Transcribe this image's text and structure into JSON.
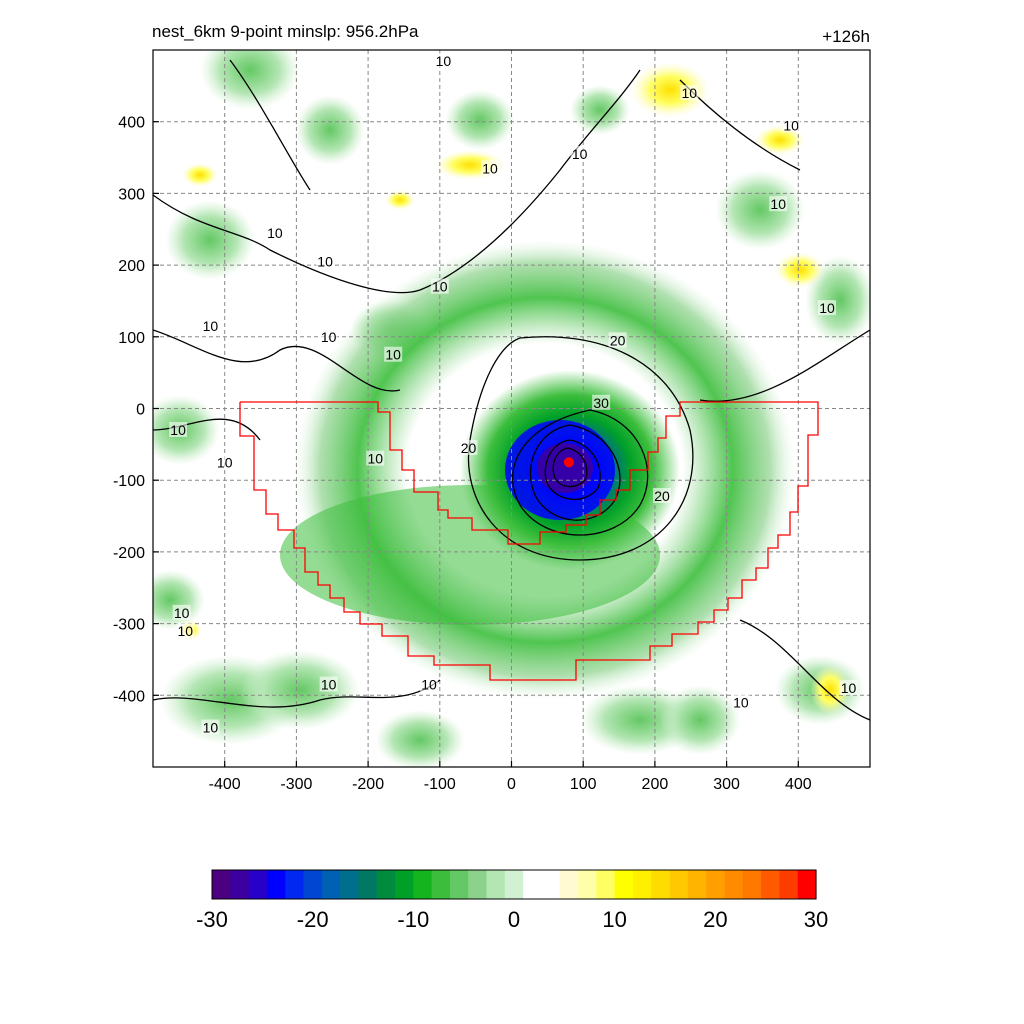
{
  "chart_data": {
    "type": "heatmap",
    "title_left": "nest_6km  9-point minslp: 956.2hPa",
    "title_right": "+126h",
    "x_ticks": [
      -400,
      -300,
      -200,
      -100,
      0,
      100,
      200,
      300,
      400
    ],
    "y_ticks": [
      400,
      300,
      200,
      100,
      0,
      -100,
      -200,
      -300,
      -400
    ],
    "xlim": [
      -500,
      500
    ],
    "ylim": [
      -500,
      500
    ],
    "grid": true,
    "colorbar": {
      "range": [
        -30,
        30
      ],
      "tick_labels": [
        "-30",
        "-20",
        "-10",
        "0",
        "10",
        "20",
        "30"
      ],
      "tick_values": [
        -30,
        -20,
        -10,
        0,
        10,
        20,
        30
      ],
      "colors": [
        "#4b0080",
        "#3c00a0",
        "#2800c8",
        "#0000ff",
        "#0028f0",
        "#0046d2",
        "#0060b4",
        "#006e8c",
        "#007864",
        "#008c3c",
        "#00a028",
        "#14b41e",
        "#3cbe3c",
        "#64c864",
        "#8cd28c",
        "#b4e6b4",
        "#d2f0d2",
        "#ffffff",
        "#ffffff",
        "#fffad2",
        "#ffffaa",
        "#ffff64",
        "#ffff00",
        "#fff000",
        "#ffdc00",
        "#ffc800",
        "#ffb400",
        "#ffa000",
        "#ff8c00",
        "#ff7800",
        "#ff5a00",
        "#ff3c00",
        "#ff0000"
      ]
    },
    "contour_labels": [
      {
        "text": "10",
        "x": -95,
        "y": 485
      },
      {
        "text": "10",
        "x": 248,
        "y": 440
      },
      {
        "text": "10",
        "x": 390,
        "y": 395
      },
      {
        "text": "10",
        "x": 95,
        "y": 355
      },
      {
        "text": "10",
        "x": -30,
        "y": 335
      },
      {
        "text": "10",
        "x": 372,
        "y": 285
      },
      {
        "text": "10",
        "x": -330,
        "y": 245
      },
      {
        "text": "10",
        "x": -260,
        "y": 205
      },
      {
        "text": "10",
        "x": -100,
        "y": 170
      },
      {
        "text": "10",
        "x": 440,
        "y": 140
      },
      {
        "text": "10",
        "x": -420,
        "y": 115
      },
      {
        "text": "10",
        "x": -255,
        "y": 100
      },
      {
        "text": "10",
        "x": -165,
        "y": 75
      },
      {
        "text": "20",
        "x": 148,
        "y": 95
      },
      {
        "text": "10",
        "x": -465,
        "y": -30
      },
      {
        "text": "10",
        "x": -400,
        "y": -75
      },
      {
        "text": "10",
        "x": -190,
        "y": -70
      },
      {
        "text": "30",
        "x": 125,
        "y": 8
      },
      {
        "text": "20",
        "x": -60,
        "y": -55
      },
      {
        "text": "20",
        "x": 210,
        "y": -122
      },
      {
        "text": "10",
        "x": -460,
        "y": -285
      },
      {
        "text": "10",
        "x": -455,
        "y": -310
      },
      {
        "text": "10",
        "x": -255,
        "y": -385
      },
      {
        "text": "10",
        "x": -115,
        "y": -385
      },
      {
        "text": "10",
        "x": 320,
        "y": -410
      },
      {
        "text": "10",
        "x": 470,
        "y": -390
      },
      {
        "text": "10",
        "x": -420,
        "y": -445
      }
    ],
    "center_marker": {
      "x": 80,
      "y": -75,
      "color": "#ff0000"
    }
  }
}
